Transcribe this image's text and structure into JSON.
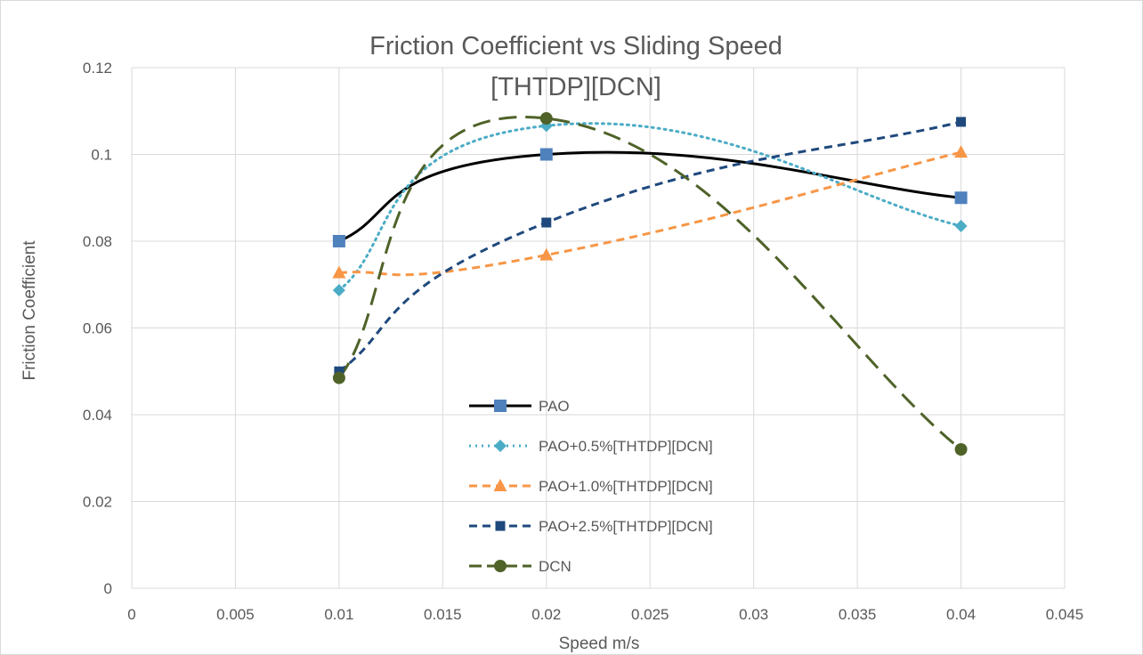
{
  "chart_data": {
    "type": "scatter",
    "title": "Friction Coefficient vs Sliding Speed",
    "subtitle": "[THTDP][DCN]",
    "xlabel": "Speed m/s",
    "ylabel": "Friction Coefficient",
    "xlim": [
      0,
      0.045
    ],
    "ylim": [
      0,
      0.12
    ],
    "x_ticks": [
      "0",
      "0.005",
      "0.01",
      "0.015",
      "0.02",
      "0.025",
      "0.03",
      "0.035",
      "0.04",
      "0.045"
    ],
    "y_ticks": [
      "0",
      "0.02",
      "0.04",
      "0.06",
      "0.08",
      "0.1",
      "0.12"
    ],
    "grid": true,
    "smoothed_lines": true,
    "legend_position": "inside-lower-center",
    "series": [
      {
        "name": "PAO",
        "x": [
          0.01,
          0.02,
          0.04
        ],
        "y": [
          0.08,
          0.1,
          0.09
        ],
        "color": "#000000",
        "marker_color": "#4f81bd",
        "marker": "square",
        "line_style": "solid"
      },
      {
        "name": "PAO+0.5%[THTDP][DCN]",
        "x": [
          0.01,
          0.02,
          0.04
        ],
        "y": [
          0.0687,
          0.1066,
          0.0835
        ],
        "color": "#4bacc6",
        "marker_color": "#4bacc6",
        "marker": "diamond",
        "line_style": "dotted"
      },
      {
        "name": "PAO+1.0%[THTDP][DCN]",
        "x": [
          0.01,
          0.02,
          0.04
        ],
        "y": [
          0.0727,
          0.0768,
          0.1005
        ],
        "color": "#f79646",
        "marker_color": "#f79646",
        "marker": "triangle",
        "line_style": "dashed"
      },
      {
        "name": "PAO+2.5%[THTDP][DCN]",
        "x": [
          0.01,
          0.02,
          0.04
        ],
        "y": [
          0.05,
          0.0843,
          0.1075
        ],
        "color": "#1f497d",
        "marker_color": "#1f497d",
        "marker": "small-square",
        "line_style": "dashed"
      },
      {
        "name": "DCN",
        "x": [
          0.01,
          0.02,
          0.04
        ],
        "y": [
          0.0485,
          0.1083,
          0.032
        ],
        "color": "#4f6228",
        "marker_color": "#4f6228",
        "marker": "circle",
        "line_style": "long-dash"
      }
    ]
  }
}
